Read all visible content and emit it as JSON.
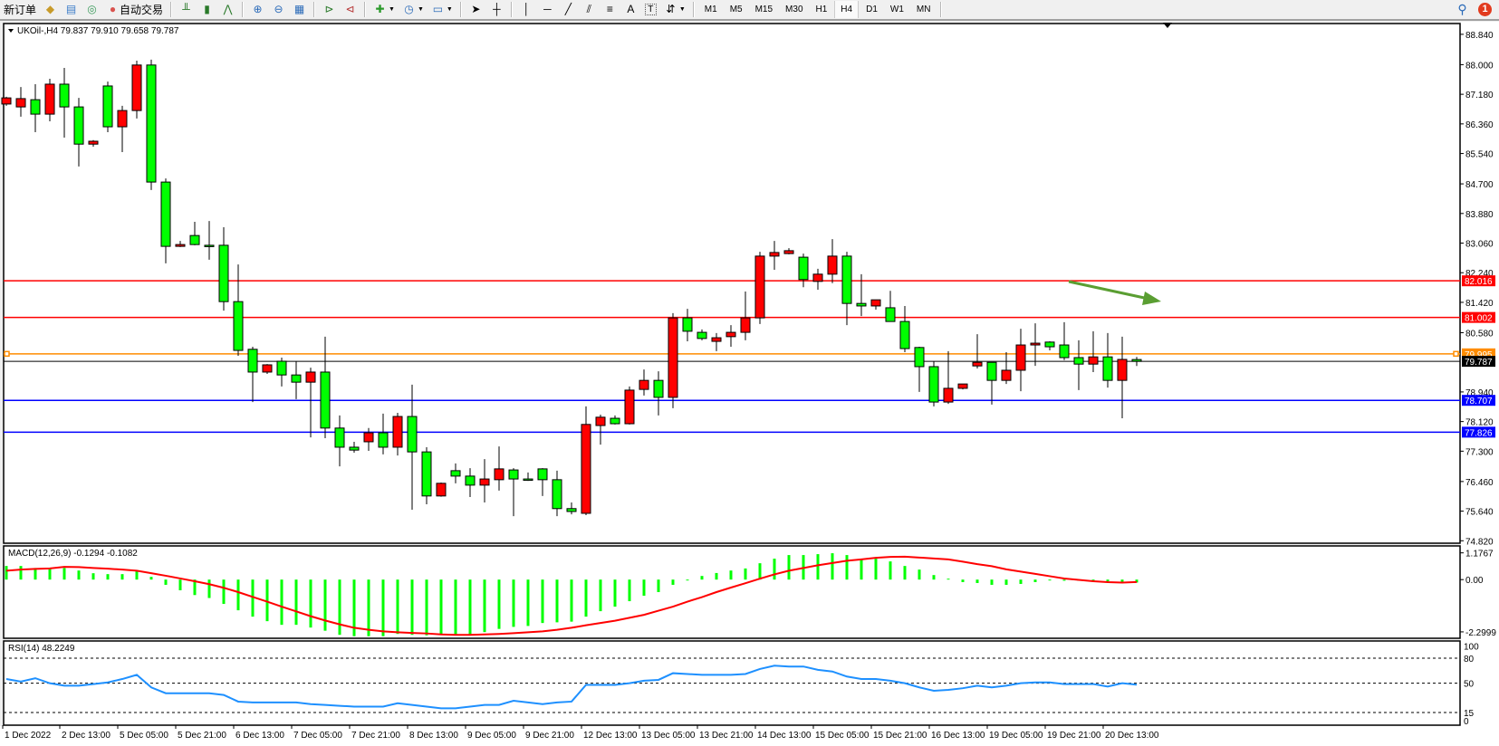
{
  "toolbar": {
    "new_order": "新订单",
    "auto_trading": "自动交易",
    "timeframes": [
      "M1",
      "M5",
      "M15",
      "M30",
      "H1",
      "H4",
      "D1",
      "W1",
      "MN"
    ],
    "active_timeframe": "H4",
    "notification_count": "1",
    "icons": [
      "open-folder-icon",
      "profiles-icon",
      "signal-icon",
      "auto-trading-icon",
      "bar-chart-icon",
      "candlestick-icon",
      "line-chart-icon",
      "zoom-in-icon",
      "zoom-out-icon",
      "tile-windows-icon",
      "auto-scroll-icon",
      "chart-shift-icon",
      "indicators-icon",
      "periods-icon",
      "templates-icon",
      "cursor-icon",
      "crosshair-icon",
      "vertical-line-icon",
      "horizontal-line-icon",
      "trendline-icon",
      "equidistant-channel-icon",
      "fibonacci-icon",
      "text-icon",
      "text-label-icon",
      "arrows-icon",
      "search-icon",
      "notification-icon"
    ]
  },
  "chart": {
    "header": "UKOil-,H4  79.837 79.910 79.658 79.787",
    "colors": {
      "up": "#ff0000",
      "down": "#00ff00",
      "background": "#ffffff",
      "resistance": "#ff0000",
      "pivot": "#ff8c00",
      "support": "#0000ff",
      "bid": "#000000",
      "arrow": "#5a9e32"
    },
    "price_ticks": [
      "88.840",
      "88.000",
      "87.180",
      "86.360",
      "85.540",
      "84.700",
      "83.880",
      "83.060",
      "82.240",
      "81.420",
      "80.580",
      "78.940",
      "78.120",
      "77.300",
      "76.460",
      "75.640",
      "74.820"
    ],
    "levels": [
      {
        "price": 82.016,
        "label": "82.016",
        "color": "#ff0000",
        "kind": "resistance"
      },
      {
        "price": 81.002,
        "label": "81.002",
        "color": "#ff0000",
        "kind": "resistance"
      },
      {
        "price": 79.995,
        "label": "79.995",
        "color": "#ff8c00",
        "kind": "pivot"
      },
      {
        "price": 79.787,
        "label": "79.787",
        "color": "#000000",
        "kind": "bid"
      },
      {
        "price": 78.707,
        "label": "78.707",
        "color": "#0000ff",
        "kind": "support"
      },
      {
        "price": 77.826,
        "label": "77.826",
        "color": "#0000ff",
        "kind": "support"
      }
    ],
    "candles": [
      [
        86.91,
        87.11,
        86.86,
        87.08
      ],
      [
        86.83,
        87.38,
        86.56,
        87.06
      ],
      [
        87.03,
        87.46,
        86.13,
        86.63
      ],
      [
        86.63,
        87.61,
        86.43,
        87.46
      ],
      [
        87.46,
        87.91,
        85.98,
        86.83
      ],
      [
        86.83,
        87.08,
        85.18,
        85.8
      ],
      [
        85.8,
        85.91,
        85.73,
        85.88
      ],
      [
        87.41,
        87.53,
        86.13,
        86.28
      ],
      [
        86.28,
        86.86,
        85.58,
        86.73
      ],
      [
        86.73,
        88.11,
        86.51,
        87.99
      ],
      [
        87.99,
        88.14,
        84.53,
        84.75
      ],
      [
        84.75,
        84.85,
        82.5,
        82.97
      ],
      [
        82.97,
        83.12,
        82.95,
        83.02
      ],
      [
        83.27,
        83.65,
        83.0,
        83.02
      ],
      [
        83.0,
        83.67,
        82.6,
        82.99
      ],
      [
        83.0,
        83.5,
        81.19,
        81.44
      ],
      [
        81.44,
        82.47,
        79.94,
        80.09
      ],
      [
        80.12,
        80.19,
        78.66,
        79.49
      ],
      [
        79.49,
        79.71,
        79.44,
        79.69
      ],
      [
        79.79,
        79.89,
        79.09,
        79.41
      ],
      [
        79.41,
        79.79,
        78.74,
        79.21
      ],
      [
        79.21,
        79.61,
        77.68,
        79.49
      ],
      [
        79.49,
        80.47,
        77.66,
        77.94
      ],
      [
        77.94,
        78.29,
        76.88,
        77.41
      ],
      [
        77.41,
        77.56,
        77.26,
        77.33
      ],
      [
        77.56,
        77.94,
        77.31,
        77.81
      ],
      [
        77.81,
        78.34,
        77.21,
        77.41
      ],
      [
        77.41,
        78.36,
        77.18,
        78.26
      ],
      [
        78.26,
        79.14,
        75.68,
        77.28
      ],
      [
        77.28,
        77.41,
        75.83,
        76.06
      ],
      [
        76.06,
        76.43,
        76.04,
        76.41
      ],
      [
        76.76,
        76.96,
        76.41,
        76.61
      ],
      [
        76.61,
        76.83,
        76.03,
        76.36
      ],
      [
        76.36,
        77.08,
        75.88,
        76.53
      ],
      [
        76.51,
        77.43,
        76.21,
        76.81
      ],
      [
        76.78,
        76.83,
        75.5,
        76.53
      ],
      [
        76.53,
        76.71,
        76.48,
        76.52
      ],
      [
        76.81,
        76.83,
        76.06,
        76.51
      ],
      [
        76.51,
        76.76,
        75.5,
        75.71
      ],
      [
        75.71,
        75.88,
        75.55,
        75.63
      ],
      [
        75.58,
        78.54,
        75.53,
        78.04
      ],
      [
        78.01,
        78.31,
        77.48,
        78.24
      ],
      [
        78.21,
        78.29,
        78.04,
        78.06
      ],
      [
        78.06,
        79.09,
        78.04,
        78.99
      ],
      [
        79.01,
        79.56,
        78.84,
        79.26
      ],
      [
        79.26,
        79.51,
        78.29,
        78.79
      ],
      [
        78.79,
        81.12,
        78.49,
        80.99
      ],
      [
        80.99,
        81.24,
        80.34,
        80.62
      ],
      [
        80.59,
        80.67,
        80.37,
        80.42
      ],
      [
        80.34,
        80.57,
        80.07,
        80.44
      ],
      [
        80.47,
        80.79,
        80.19,
        80.59
      ],
      [
        80.59,
        81.72,
        80.37,
        80.99
      ],
      [
        80.99,
        82.82,
        80.82,
        82.7
      ],
      [
        82.7,
        83.12,
        82.32,
        82.8
      ],
      [
        82.77,
        82.92,
        82.75,
        82.85
      ],
      [
        82.67,
        82.77,
        81.84,
        82.05
      ],
      [
        82.0,
        82.35,
        81.77,
        82.2
      ],
      [
        82.2,
        83.17,
        81.95,
        82.7
      ],
      [
        82.7,
        82.82,
        80.79,
        81.39
      ],
      [
        81.39,
        82.2,
        81.04,
        81.32
      ],
      [
        81.32,
        81.49,
        81.22,
        81.49
      ],
      [
        81.27,
        81.74,
        80.88,
        80.89
      ],
      [
        80.89,
        81.32,
        80.04,
        80.14
      ],
      [
        80.17,
        80.19,
        78.94,
        79.64
      ],
      [
        79.64,
        79.79,
        78.54,
        78.66
      ],
      [
        78.66,
        80.07,
        78.61,
        79.04
      ],
      [
        79.04,
        79.16,
        79.01,
        79.16
      ],
      [
        79.66,
        80.54,
        79.59,
        79.76
      ],
      [
        79.76,
        79.76,
        78.59,
        79.26
      ],
      [
        79.26,
        80.04,
        79.16,
        79.54
      ],
      [
        79.54,
        80.69,
        78.96,
        80.24
      ],
      [
        80.24,
        80.84,
        79.66,
        80.29
      ],
      [
        80.32,
        80.34,
        80.09,
        80.19
      ],
      [
        80.24,
        80.87,
        79.82,
        79.89
      ],
      [
        79.89,
        80.37,
        78.99,
        79.71
      ],
      [
        79.71,
        80.62,
        79.49,
        79.91
      ],
      [
        79.91,
        80.57,
        79.06,
        79.26
      ],
      [
        79.26,
        80.47,
        78.21,
        79.84
      ],
      [
        79.837,
        79.91,
        79.658,
        79.787
      ]
    ],
    "time_labels": [
      "1 Dec 2022",
      "2 Dec 13:00",
      "5 Dec 05:00",
      "5 Dec 21:00",
      "6 Dec 13:00",
      "7 Dec 05:00",
      "7 Dec 21:00",
      "8 Dec 13:00",
      "9 Dec 05:00",
      "9 Dec 21:00",
      "12 Dec 13:00",
      "13 Dec 05:00",
      "13 Dec 21:00",
      "14 Dec 13:00",
      "15 Dec 05:00",
      "15 Dec 21:00",
      "16 Dec 13:00",
      "19 Dec 05:00",
      "19 Dec 21:00",
      "20 Dec 13:00"
    ],
    "annotation_arrow": {
      "direction": "down-right",
      "color": "#5a9e32"
    }
  },
  "macd": {
    "label": "MACD(12,26,9) -0.1294 -0.1082",
    "ticks": [
      "1.1767",
      "0.00",
      "-2.2999"
    ],
    "histogram_color": "#00ff00",
    "signal_color": "#ff0000",
    "main": [
      0.6,
      0.6,
      0.51,
      0.51,
      0.51,
      0.4,
      0.28,
      0.24,
      0.24,
      0.37,
      0.12,
      -0.23,
      -0.47,
      -0.68,
      -0.81,
      -1.07,
      -1.35,
      -1.63,
      -1.83,
      -1.99,
      -1.99,
      -2.11,
      -2.25,
      -2.43,
      -2.49,
      -2.49,
      -2.49,
      -2.39,
      -2.43,
      -2.45,
      -2.43,
      -2.43,
      -2.43,
      -2.31,
      -2.17,
      -2.08,
      -2.04,
      -1.91,
      -1.88,
      -1.85,
      -1.63,
      -1.39,
      -1.19,
      -0.95,
      -0.71,
      -0.55,
      -0.23,
      -0.03,
      0.16,
      0.29,
      0.4,
      0.49,
      0.72,
      0.92,
      1.08,
      1.08,
      1.12,
      1.16,
      1.08,
      0.92,
      0.92,
      0.8,
      0.6,
      0.44,
      0.2,
      0.04,
      -0.11,
      -0.15,
      -0.23,
      -0.23,
      -0.19,
      -0.11,
      -0.03,
      -0.05,
      -0.05,
      -0.06,
      -0.08,
      -0.1,
      -0.1294
    ],
    "signal": [
      0.39,
      0.44,
      0.47,
      0.49,
      0.56,
      0.55,
      0.51,
      0.48,
      0.44,
      0.39,
      0.28,
      0.17,
      0.05,
      -0.07,
      -0.2,
      -0.36,
      -0.55,
      -0.76,
      -0.97,
      -1.19,
      -1.4,
      -1.61,
      -1.8,
      -1.97,
      -2.12,
      -2.21,
      -2.28,
      -2.32,
      -2.35,
      -2.37,
      -2.41,
      -2.43,
      -2.43,
      -2.41,
      -2.39,
      -2.36,
      -2.32,
      -2.28,
      -2.21,
      -2.12,
      -2.01,
      -1.91,
      -1.81,
      -1.68,
      -1.55,
      -1.37,
      -1.19,
      -0.97,
      -0.77,
      -0.55,
      -0.35,
      -0.16,
      0.04,
      0.23,
      0.39,
      0.51,
      0.63,
      0.73,
      0.83,
      0.89,
      0.96,
      1.0,
      1.01,
      0.97,
      0.93,
      0.89,
      0.79,
      0.68,
      0.59,
      0.45,
      0.35,
      0.25,
      0.15,
      0.05,
      -0.01,
      -0.07,
      -0.11,
      -0.13,
      -0.1082
    ]
  },
  "rsi": {
    "label": "RSI(14) 48.2249",
    "ticks": [
      "100",
      "80",
      "50",
      "15",
      "0"
    ],
    "levels": [
      80,
      50,
      15
    ],
    "color": "#1e90ff",
    "values": [
      55,
      52,
      56,
      50,
      47,
      47,
      49,
      51,
      55,
      60,
      45,
      38,
      38,
      38,
      38,
      36,
      28,
      27,
      27,
      27,
      27,
      25,
      24,
      23,
      22,
      22,
      22,
      26,
      24,
      22,
      20,
      20,
      22,
      24,
      24,
      29,
      27,
      25,
      27,
      28,
      48,
      48,
      48,
      50,
      53,
      54,
      62,
      61,
      60,
      60,
      60,
      61,
      67,
      71,
      70,
      70,
      66,
      64,
      58,
      55,
      55,
      53,
      50,
      45,
      41,
      42,
      44,
      47,
      45,
      47,
      50,
      51,
      51,
      49,
      49,
      49,
      46,
      50,
      48.2249
    ]
  }
}
